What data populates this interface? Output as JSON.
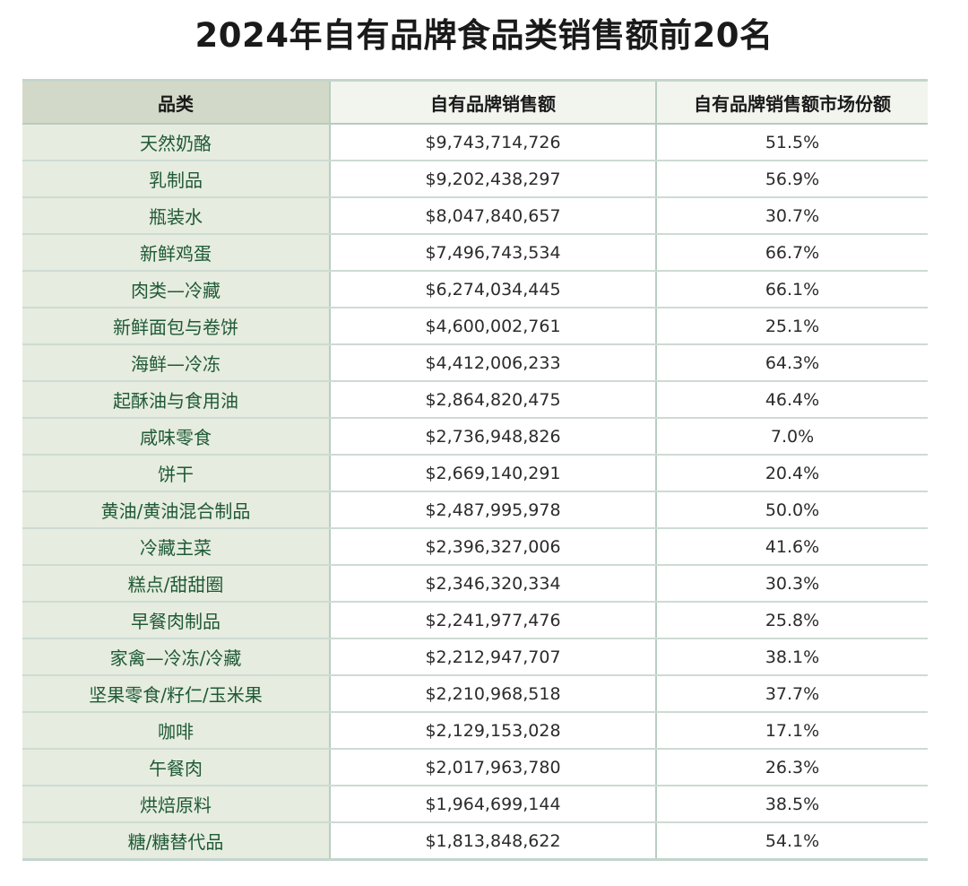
{
  "chart_data": {
    "type": "table",
    "title": "2024年自有品牌食品类销售额前20名",
    "columns": [
      "品类",
      "自有品牌销售额",
      "自有品牌销售额市场份额"
    ],
    "rows": [
      {
        "category": "天然奶酪",
        "sales": "$9,743,714,726",
        "share": "51.5%"
      },
      {
        "category": "乳制品",
        "sales": "$9,202,438,297",
        "share": "56.9%"
      },
      {
        "category": "瓶装水",
        "sales": "$8,047,840,657",
        "share": "30.7%"
      },
      {
        "category": "新鲜鸡蛋",
        "sales": "$7,496,743,534",
        "share": "66.7%"
      },
      {
        "category": "肉类—冷藏",
        "sales": "$6,274,034,445",
        "share": "66.1%"
      },
      {
        "category": "新鲜面包与卷饼",
        "sales": "$4,600,002,761",
        "share": "25.1%"
      },
      {
        "category": "海鲜—冷冻",
        "sales": "$4,412,006,233",
        "share": "64.3%"
      },
      {
        "category": "起酥油与食用油",
        "sales": "$2,864,820,475",
        "share": "46.4%"
      },
      {
        "category": "咸味零食",
        "sales": "$2,736,948,826",
        "share": "7.0%"
      },
      {
        "category": "饼干",
        "sales": "$2,669,140,291",
        "share": "20.4%"
      },
      {
        "category": "黄油/黄油混合制品",
        "sales": "$2,487,995,978",
        "share": "50.0%"
      },
      {
        "category": "冷藏主菜",
        "sales": "$2,396,327,006",
        "share": "41.6%"
      },
      {
        "category": "糕点/甜甜圈",
        "sales": "$2,346,320,334",
        "share": "30.3%"
      },
      {
        "category": "早餐肉制品",
        "sales": "$2,241,977,476",
        "share": "25.8%"
      },
      {
        "category": "家禽—冷冻/冷藏",
        "sales": "$2,212,947,707",
        "share": "38.1%"
      },
      {
        "category": "坚果零食/籽仁/玉米果",
        "sales": "$2,210,968,518",
        "share": "37.7%"
      },
      {
        "category": "咖啡",
        "sales": "$2,129,153,028",
        "share": "17.1%"
      },
      {
        "category": "午餐肉",
        "sales": "$2,017,963,780",
        "share": "26.3%"
      },
      {
        "category": "烘焙原料",
        "sales": "$1,964,699,144",
        "share": "38.5%"
      },
      {
        "category": "糖/糖替代品",
        "sales": "$1,813,848,622",
        "share": "54.1%"
      }
    ],
    "colors": {
      "category_text": "#1f5a36",
      "category_bg": "#e6ecdf",
      "header_first_bg": "#d3d9c8",
      "rule": "#cddbd3"
    }
  }
}
